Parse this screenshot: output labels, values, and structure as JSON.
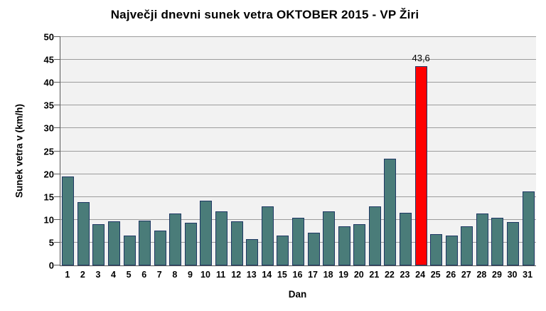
{
  "chart_data": {
    "type": "bar",
    "title": "Največji dnevni sunek vetra OKTOBER 2015 - VP Žiri",
    "xlabel": "Dan",
    "ylabel": "Sunek vetra v (km/h)",
    "categories": [
      "1",
      "2",
      "3",
      "4",
      "5",
      "6",
      "7",
      "8",
      "9",
      "10",
      "11",
      "12",
      "13",
      "14",
      "15",
      "16",
      "17",
      "18",
      "19",
      "20",
      "21",
      "22",
      "23",
      "24",
      "25",
      "26",
      "27",
      "28",
      "29",
      "30",
      "31"
    ],
    "values": [
      19.4,
      13.8,
      9.0,
      9.7,
      6.6,
      9.8,
      7.7,
      11.3,
      9.4,
      14.1,
      11.9,
      9.7,
      5.8,
      13.0,
      6.6,
      10.5,
      7.2,
      11.9,
      8.6,
      9.1,
      13.0,
      23.4,
      11.5,
      43.6,
      6.9,
      6.6,
      8.6,
      11.4,
      10.5,
      9.5,
      16.2
    ],
    "ylim": [
      0,
      50
    ],
    "ytick_step": 5,
    "ytick_labels": [
      "0",
      "5",
      "10",
      "15",
      "20",
      "25",
      "30",
      "35",
      "40",
      "45",
      "50"
    ],
    "grid": true,
    "legend": "none",
    "highlight_index": 23,
    "highlight_label": "43,6",
    "colors": {
      "bar_fill": "#4A7C79",
      "bar_border": "#1F3864",
      "highlight_fill": "#FF0000",
      "plot_bg": "#F2F2F2",
      "gridline": "#9C9C9C",
      "axis_line": "#595959",
      "text": "#000000"
    }
  }
}
